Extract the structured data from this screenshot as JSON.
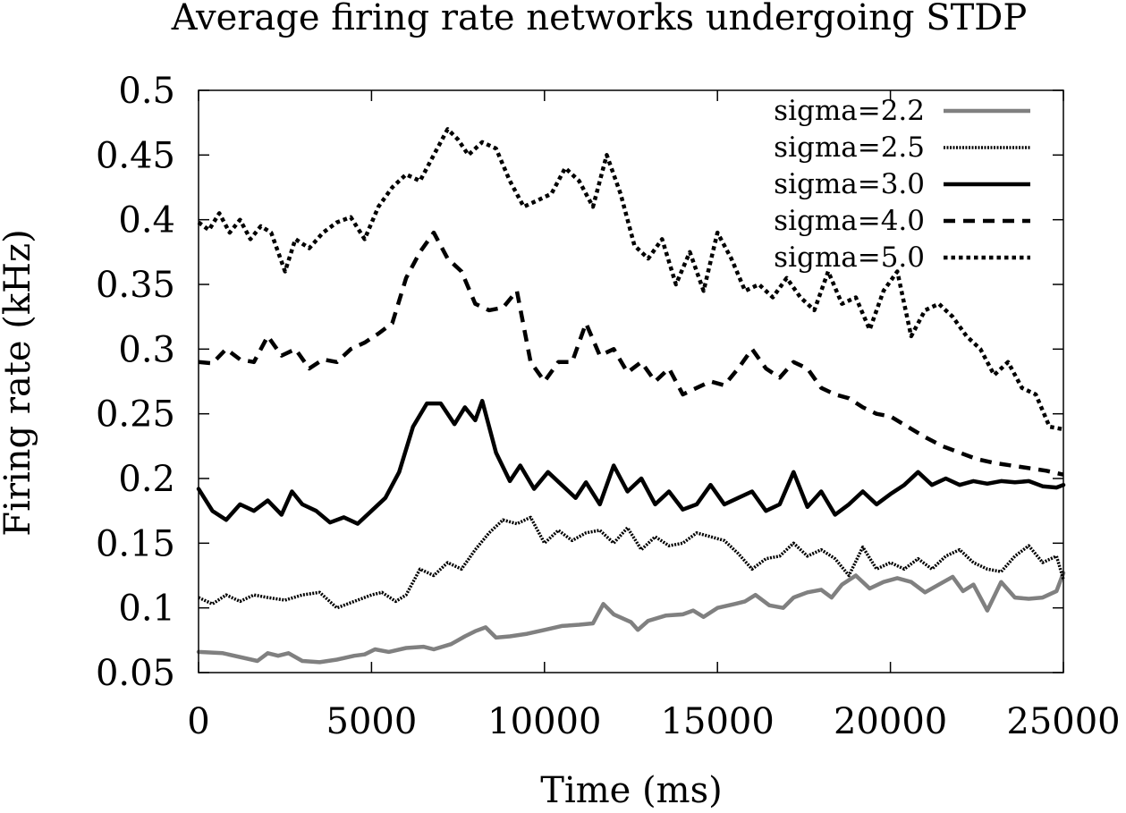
{
  "chart_data": {
    "type": "line",
    "title": "Average firing rate networks undergoing STDP",
    "xlabel": "Time (ms)",
    "ylabel": "Firing rate (kHz)",
    "xlim": [
      0,
      25000
    ],
    "ylim": [
      0.05,
      0.5
    ],
    "xticks": [
      0,
      5000,
      10000,
      15000,
      20000,
      25000
    ],
    "xtick_labels": [
      "0",
      "5000",
      "10000",
      "15000",
      "20000",
      "25000"
    ],
    "yticks": [
      0.05,
      0.1,
      0.15,
      0.2,
      0.25,
      0.3,
      0.35,
      0.4,
      0.45,
      0.5
    ],
    "ytick_labels": [
      "0.05",
      "0.1",
      "0.15",
      "0.2",
      "0.25",
      "0.3",
      "0.35",
      "0.4",
      "0.45",
      "0.5"
    ],
    "grid": false,
    "legend_position": "top-right",
    "series": [
      {
        "name": "sigma=2.2",
        "color": "#808080",
        "style": "solid-gray",
        "x": [
          0,
          700,
          1700,
          2000,
          2300,
          2600,
          3000,
          3500,
          4000,
          4500,
          4800,
          5100,
          5500,
          6000,
          6500,
          6800,
          7300,
          7700,
          8000,
          8300,
          8600,
          9000,
          9500,
          10000,
          10500,
          11000,
          11400,
          11700,
          12000,
          12500,
          12700,
          13000,
          13500,
          14000,
          14300,
          14600,
          15000,
          15500,
          15800,
          16100,
          16500,
          16900,
          17200,
          17600,
          18000,
          18300,
          18600,
          19000,
          19400,
          19800,
          20200,
          20600,
          21000,
          21400,
          21800,
          22100,
          22400,
          22800,
          23200,
          23600,
          24000,
          24400,
          24800,
          25000
        ],
        "y": [
          0.066,
          0.065,
          0.059,
          0.065,
          0.063,
          0.065,
          0.059,
          0.058,
          0.06,
          0.063,
          0.064,
          0.068,
          0.066,
          0.069,
          0.07,
          0.068,
          0.072,
          0.078,
          0.082,
          0.085,
          0.077,
          0.078,
          0.08,
          0.083,
          0.086,
          0.087,
          0.088,
          0.103,
          0.095,
          0.089,
          0.083,
          0.09,
          0.094,
          0.095,
          0.098,
          0.093,
          0.1,
          0.103,
          0.105,
          0.11,
          0.102,
          0.1,
          0.108,
          0.112,
          0.114,
          0.108,
          0.118,
          0.125,
          0.115,
          0.12,
          0.123,
          0.12,
          0.112,
          0.118,
          0.124,
          0.113,
          0.118,
          0.098,
          0.12,
          0.108,
          0.107,
          0.108,
          0.113,
          0.127
        ]
      },
      {
        "name": "sigma=2.5",
        "color": "#000000",
        "style": "fine-dotted",
        "x": [
          0,
          400,
          800,
          1200,
          1600,
          2000,
          2500,
          3000,
          3500,
          4000,
          4500,
          5000,
          5300,
          5700,
          6000,
          6400,
          6800,
          7200,
          7600,
          8000,
          8400,
          8800,
          9200,
          9600,
          10000,
          10400,
          10800,
          11200,
          11600,
          12000,
          12400,
          12800,
          13200,
          13600,
          14000,
          14400,
          14800,
          15200,
          15600,
          16000,
          16400,
          16800,
          17200,
          17600,
          18000,
          18400,
          18800,
          19200,
          19600,
          20000,
          20400,
          20800,
          21200,
          21600,
          22000,
          22400,
          22800,
          23200,
          23600,
          24000,
          24400,
          24800,
          25000
        ],
        "y": [
          0.108,
          0.103,
          0.11,
          0.105,
          0.11,
          0.108,
          0.106,
          0.11,
          0.112,
          0.1,
          0.105,
          0.11,
          0.112,
          0.105,
          0.11,
          0.13,
          0.125,
          0.135,
          0.13,
          0.145,
          0.158,
          0.168,
          0.165,
          0.17,
          0.15,
          0.16,
          0.152,
          0.158,
          0.16,
          0.15,
          0.162,
          0.145,
          0.155,
          0.148,
          0.15,
          0.158,
          0.155,
          0.152,
          0.142,
          0.13,
          0.138,
          0.14,
          0.15,
          0.14,
          0.145,
          0.138,
          0.125,
          0.147,
          0.13,
          0.135,
          0.13,
          0.138,
          0.13,
          0.14,
          0.145,
          0.135,
          0.13,
          0.128,
          0.14,
          0.148,
          0.135,
          0.14,
          0.122
        ]
      },
      {
        "name": "sigma=3.0",
        "color": "#000000",
        "style": "solid-black",
        "x": [
          0,
          400,
          800,
          1200,
          1600,
          2000,
          2400,
          2700,
          3000,
          3400,
          3800,
          4200,
          4600,
          5000,
          5400,
          5800,
          6200,
          6600,
          7000,
          7400,
          7700,
          8000,
          8200,
          8600,
          9000,
          9300,
          9700,
          10100,
          10500,
          10900,
          11200,
          11600,
          12000,
          12400,
          12800,
          13200,
          13600,
          14000,
          14400,
          14800,
          15200,
          15600,
          16000,
          16400,
          16800,
          17200,
          17600,
          18000,
          18400,
          18800,
          19200,
          19600,
          20000,
          20400,
          20800,
          21200,
          21600,
          22000,
          22400,
          22800,
          23200,
          23600,
          24000,
          24400,
          24800,
          25000
        ],
        "y": [
          0.192,
          0.175,
          0.168,
          0.18,
          0.175,
          0.183,
          0.172,
          0.19,
          0.18,
          0.175,
          0.166,
          0.17,
          0.165,
          0.175,
          0.185,
          0.205,
          0.24,
          0.258,
          0.258,
          0.242,
          0.255,
          0.245,
          0.26,
          0.22,
          0.198,
          0.21,
          0.192,
          0.205,
          0.195,
          0.185,
          0.197,
          0.18,
          0.21,
          0.19,
          0.2,
          0.18,
          0.19,
          0.176,
          0.18,
          0.195,
          0.18,
          0.185,
          0.19,
          0.175,
          0.18,
          0.205,
          0.178,
          0.19,
          0.172,
          0.18,
          0.19,
          0.18,
          0.188,
          0.195,
          0.205,
          0.195,
          0.2,
          0.195,
          0.198,
          0.196,
          0.198,
          0.197,
          0.198,
          0.194,
          0.193,
          0.195
        ]
      },
      {
        "name": "sigma=4.0",
        "color": "#000000",
        "style": "dashed",
        "x": [
          0,
          400,
          800,
          1200,
          1600,
          2000,
          2400,
          2800,
          3200,
          3600,
          4000,
          4400,
          4800,
          5200,
          5600,
          6000,
          6400,
          6800,
          7200,
          7600,
          8000,
          8400,
          8800,
          9200,
          9600,
          10000,
          10400,
          10800,
          11200,
          11600,
          12000,
          12400,
          12800,
          13200,
          13600,
          14000,
          14400,
          14800,
          15200,
          15600,
          16000,
          16400,
          16800,
          17200,
          17600,
          18000,
          18400,
          18800,
          19200,
          19600,
          20000,
          20500,
          21000,
          21500,
          22000,
          22500,
          23000,
          23500,
          24000,
          24500,
          25000
        ],
        "y": [
          0.29,
          0.289,
          0.3,
          0.292,
          0.29,
          0.31,
          0.295,
          0.3,
          0.285,
          0.292,
          0.29,
          0.3,
          0.305,
          0.312,
          0.32,
          0.355,
          0.375,
          0.39,
          0.37,
          0.36,
          0.335,
          0.33,
          0.332,
          0.345,
          0.29,
          0.275,
          0.29,
          0.29,
          0.32,
          0.295,
          0.3,
          0.282,
          0.29,
          0.275,
          0.285,
          0.265,
          0.27,
          0.275,
          0.272,
          0.285,
          0.3,
          0.285,
          0.278,
          0.29,
          0.285,
          0.27,
          0.265,
          0.262,
          0.255,
          0.25,
          0.248,
          0.24,
          0.232,
          0.225,
          0.22,
          0.215,
          0.212,
          0.21,
          0.208,
          0.206,
          0.203
        ]
      },
      {
        "name": "sigma=5.0",
        "color": "#000000",
        "style": "dotted",
        "x": [
          0,
          300,
          600,
          900,
          1200,
          1500,
          1800,
          2100,
          2500,
          2800,
          3200,
          3600,
          4000,
          4400,
          4800,
          5200,
          5600,
          6000,
          6400,
          6800,
          7200,
          7500,
          7800,
          8200,
          8600,
          9000,
          9400,
          9800,
          10200,
          10600,
          11000,
          11400,
          11800,
          12200,
          12600,
          13000,
          13400,
          13800,
          14200,
          14600,
          15000,
          15400,
          15800,
          16200,
          16600,
          17000,
          17400,
          17800,
          18200,
          18600,
          19000,
          19400,
          19800,
          20200,
          20600,
          21000,
          21400,
          21800,
          22200,
          22600,
          23000,
          23400,
          23800,
          24200,
          24600,
          25000
        ],
        "y": [
          0.398,
          0.392,
          0.405,
          0.39,
          0.4,
          0.385,
          0.395,
          0.39,
          0.36,
          0.385,
          0.378,
          0.39,
          0.398,
          0.402,
          0.385,
          0.41,
          0.425,
          0.435,
          0.43,
          0.45,
          0.47,
          0.462,
          0.45,
          0.46,
          0.455,
          0.43,
          0.41,
          0.415,
          0.42,
          0.44,
          0.43,
          0.41,
          0.45,
          0.42,
          0.38,
          0.37,
          0.385,
          0.35,
          0.375,
          0.345,
          0.39,
          0.37,
          0.345,
          0.35,
          0.34,
          0.355,
          0.34,
          0.33,
          0.36,
          0.335,
          0.34,
          0.315,
          0.345,
          0.36,
          0.31,
          0.33,
          0.335,
          0.325,
          0.31,
          0.3,
          0.28,
          0.29,
          0.27,
          0.265,
          0.24,
          0.238
        ]
      }
    ]
  }
}
